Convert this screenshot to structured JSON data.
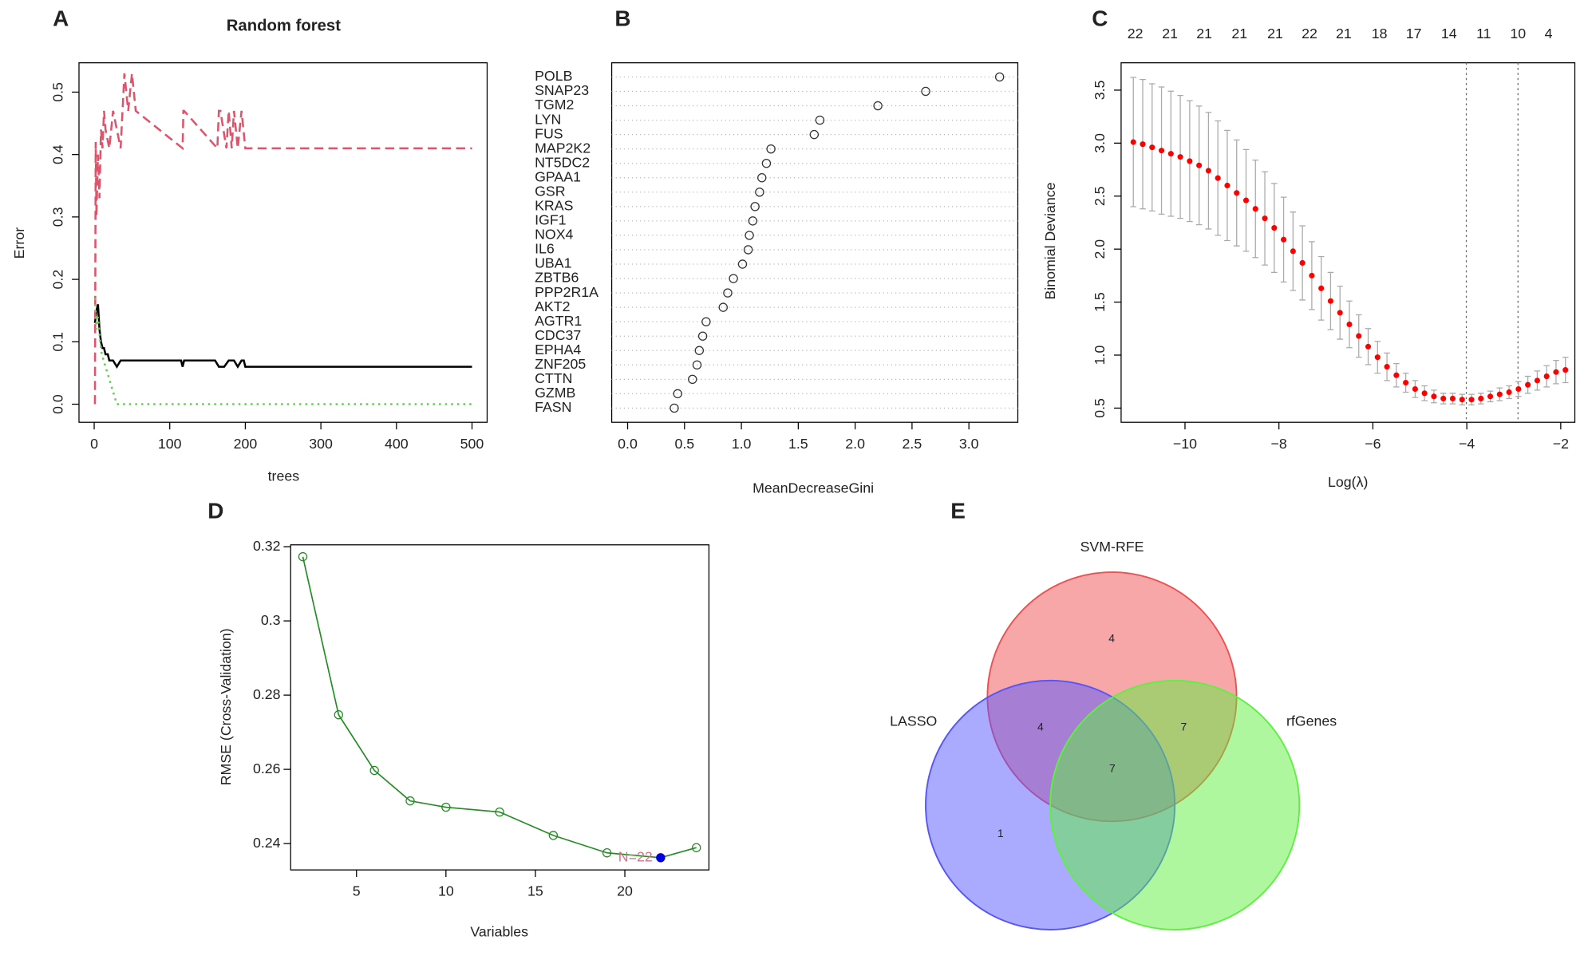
{
  "chart_data": [
    {
      "type": "line",
      "panel": "A",
      "title": "Random forest",
      "x_label": "trees",
      "y_label": "Error",
      "xlim": [
        -20.1,
        520
      ],
      "ylim": [
        -0.029,
        0.547
      ],
      "xticks": [
        0,
        100,
        200,
        300,
        400,
        500
      ],
      "yticks": [
        {
          "value": 0,
          "label": "0.0"
        },
        0.1,
        0.2,
        0.3,
        0.4,
        0.5
      ],
      "series": [
        {
          "color": "#000000",
          "dash": "solid",
          "x": [
            1,
            3,
            5,
            7,
            9,
            11,
            13,
            15,
            18,
            20,
            25,
            30,
            35,
            40,
            45,
            50,
            115,
            117,
            119,
            160,
            165,
            172,
            178,
            185,
            190,
            195,
            198,
            200,
            500
          ],
          "values": [
            0.13,
            0.15,
            0.16,
            0.12,
            0.1,
            0.09,
            0.09,
            0.08,
            0.08,
            0.07,
            0.07,
            0.06,
            0.07,
            0.07,
            0.07,
            0.07,
            0.07,
            0.06,
            0.07,
            0.07,
            0.06,
            0.06,
            0.07,
            0.07,
            0.06,
            0.07,
            0.07,
            0.06,
            0.06
          ]
        },
        {
          "color": "#df536b",
          "dash": "dashed",
          "x": [
            1,
            2,
            3,
            5,
            7,
            9,
            11,
            13,
            15,
            20,
            25,
            30,
            35,
            40,
            45,
            50,
            55,
            117,
            118,
            119,
            163,
            165,
            167,
            175,
            178,
            182,
            185,
            190,
            195,
            200,
            500
          ],
          "values": [
            0,
            0.42,
            0.3,
            0.4,
            0.33,
            0.44,
            0.41,
            0.47,
            0.44,
            0.41,
            0.47,
            0.44,
            0.41,
            0.53,
            0.47,
            0.53,
            0.47,
            0.41,
            0.47,
            0.47,
            0.41,
            0.47,
            0.47,
            0.41,
            0.47,
            0.41,
            0.47,
            0.41,
            0.47,
            0.41,
            0.41
          ]
        },
        {
          "color": "#61d04f",
          "dash": "dotted",
          "x": [
            1,
            3,
            5,
            8,
            10,
            15,
            20,
            25,
            30,
            500
          ],
          "values": [
            0.17,
            0.12,
            0.14,
            0.1,
            0.08,
            0.06,
            0.04,
            0.02,
            0,
            0
          ]
        }
      ]
    },
    {
      "type": "dot",
      "panel": "B",
      "x_label": "MeanDecreaseGini",
      "categories": [
        "POLB",
        "SNAP23",
        "TGM2",
        "LYN",
        "FUS",
        "MAP2K2",
        "NT5DC2",
        "GPAA1",
        "GSR",
        "KRAS",
        "IGF1",
        "NOX4",
        "IL6",
        "UBA1",
        "ZBTB6",
        "PPP2R1A",
        "AKT2",
        "AGTR1",
        "CDC37",
        "EPHA4",
        "ZNF205",
        "CTTN",
        "GZMB",
        "FASN"
      ],
      "values": [
        3.27,
        2.62,
        2.2,
        1.69,
        1.64,
        1.26,
        1.22,
        1.18,
        1.16,
        1.12,
        1.1,
        1.07,
        1.06,
        1.01,
        0.93,
        0.88,
        0.84,
        0.69,
        0.66,
        0.63,
        0.61,
        0.57,
        0.44,
        0.41
      ],
      "color": "#333333",
      "grid": true,
      "xlim": [
        -0.14,
        3.43
      ],
      "xticks": [
        {
          "value": 0,
          "label": "0.0"
        },
        0.5,
        {
          "value": 1,
          "label": "1.0"
        },
        1.5,
        {
          "value": 2,
          "label": "2.0"
        },
        2.5,
        {
          "value": 3,
          "label": "3.0"
        }
      ]
    },
    {
      "type": "errorbar",
      "panel": "C",
      "x_label": "Log(λ)",
      "y_label": "Binomial Deviance",
      "color": "#ff0000",
      "error_color": "#aaaaaa",
      "xlim": [
        -11.36,
        -1.7
      ],
      "ylim": [
        0.366,
        3.758
      ],
      "xticks": [
        {
          "value": -10,
          "label": "−10"
        },
        {
          "value": -8,
          "label": "−8"
        },
        {
          "value": -6,
          "label": "−6"
        },
        {
          "value": -4,
          "label": "−4"
        },
        {
          "value": -2,
          "label": "−2"
        }
      ],
      "yticks": [
        0.5,
        {
          "value": 1,
          "label": "1.0"
        },
        1.5,
        {
          "value": 2,
          "label": "2.0"
        },
        2.5,
        {
          "value": 3,
          "label": "3.0"
        },
        3.5
      ],
      "top_ticks": [
        {
          "value": -11.06,
          "label": "22"
        },
        {
          "value": -10.32,
          "label": "21"
        },
        {
          "value": -9.59,
          "label": "21"
        },
        {
          "value": -8.84,
          "label": "21"
        },
        {
          "value": -8.08,
          "label": "21"
        },
        {
          "value": -7.35,
          "label": "22"
        },
        {
          "value": -6.62,
          "label": "21"
        },
        {
          "value": -5.86,
          "label": "18"
        },
        {
          "value": -5.13,
          "label": "17"
        },
        {
          "value": -4.38,
          "label": "14"
        },
        {
          "value": -3.64,
          "label": "11"
        },
        {
          "value": -2.91,
          "label": "10"
        },
        {
          "value": -2.26,
          "label": "4"
        }
      ],
      "vlines": [
        -4.01,
        -2.91
      ],
      "x": [
        -11.1,
        -10.9,
        -10.7,
        -10.5,
        -10.3,
        -10.1,
        -9.9,
        -9.7,
        -9.5,
        -9.3,
        -9.1,
        -8.9,
        -8.7,
        -8.5,
        -8.3,
        -8.1,
        -7.9,
        -7.7,
        -7.5,
        -7.3,
        -7.1,
        -6.9,
        -6.7,
        -6.5,
        -6.3,
        -6.1,
        -5.9,
        -5.7,
        -5.5,
        -5.3,
        -5.1,
        -4.9,
        -4.7,
        -4.5,
        -4.3,
        -4.1,
        -3.9,
        -3.7,
        -3.5,
        -3.3,
        -3.1,
        -2.9,
        -2.7,
        -2.5,
        -2.3,
        -2.1,
        -1.9
      ],
      "values": [
        3.01,
        2.99,
        2.96,
        2.93,
        2.9,
        2.87,
        2.83,
        2.79,
        2.74,
        2.67,
        2.6,
        2.53,
        2.46,
        2.38,
        2.29,
        2.2,
        2.09,
        1.98,
        1.87,
        1.75,
        1.63,
        1.51,
        1.4,
        1.29,
        1.18,
        1.08,
        0.98,
        0.89,
        0.81,
        0.74,
        0.68,
        0.64,
        0.61,
        0.59,
        0.59,
        0.58,
        0.58,
        0.59,
        0.61,
        0.63,
        0.65,
        0.68,
        0.72,
        0.76,
        0.8,
        0.84,
        0.86
      ],
      "errors": [
        0.61,
        0.61,
        0.6,
        0.6,
        0.59,
        0.58,
        0.57,
        0.56,
        0.55,
        0.54,
        0.52,
        0.5,
        0.48,
        0.46,
        0.44,
        0.42,
        0.4,
        0.37,
        0.35,
        0.32,
        0.3,
        0.27,
        0.25,
        0.22,
        0.2,
        0.17,
        0.15,
        0.13,
        0.11,
        0.09,
        0.08,
        0.07,
        0.06,
        0.05,
        0.05,
        0.05,
        0.05,
        0.05,
        0.05,
        0.06,
        0.06,
        0.07,
        0.08,
        0.09,
        0.1,
        0.11,
        0.12
      ]
    },
    {
      "type": "line",
      "panel": "D",
      "x_label": "Variables",
      "y_label": "RMSE (Cross-Validation)",
      "xlim": [
        1.32,
        24.7
      ],
      "ylim": [
        0.2329,
        0.3205
      ],
      "xticks": [
        5,
        10,
        15,
        20
      ],
      "yticks": [
        0.24,
        0.26,
        0.28,
        0.3,
        0.32
      ],
      "markers": true,
      "highlight_color": "#0000dd",
      "annotation": "N=22",
      "annotation_color": "#d47088",
      "series": [
        {
          "color": "#228b22",
          "dash": "solid",
          "x": [
            2,
            4,
            6,
            8,
            10,
            13,
            16,
            19,
            22,
            24
          ],
          "values": [
            0.3173,
            0.2747,
            0.2597,
            0.2515,
            0.2498,
            0.2485,
            0.2422,
            0.2375,
            0.2362,
            0.2389
          ]
        }
      ]
    },
    {
      "type": "venn",
      "panel": "E",
      "sets": [
        {
          "name": "SVM-RFE",
          "color": "#ef5050"
        },
        {
          "name": "LASSO",
          "color": "#5555ff"
        },
        {
          "name": "rfGenes",
          "color": "#5ef040"
        }
      ],
      "regions": [
        {
          "sets": [
            "SVM-RFE"
          ],
          "value": 4
        },
        {
          "sets": [
            "SVM-RFE",
            "LASSO"
          ],
          "value": 4
        },
        {
          "sets": [
            "SVM-RFE",
            "rfGenes"
          ],
          "value": 7
        },
        {
          "sets": [
            "SVM-RFE",
            "LASSO",
            "rfGenes"
          ],
          "value": 7
        },
        {
          "sets": [
            "LASSO"
          ],
          "value": 1
        }
      ]
    }
  ]
}
